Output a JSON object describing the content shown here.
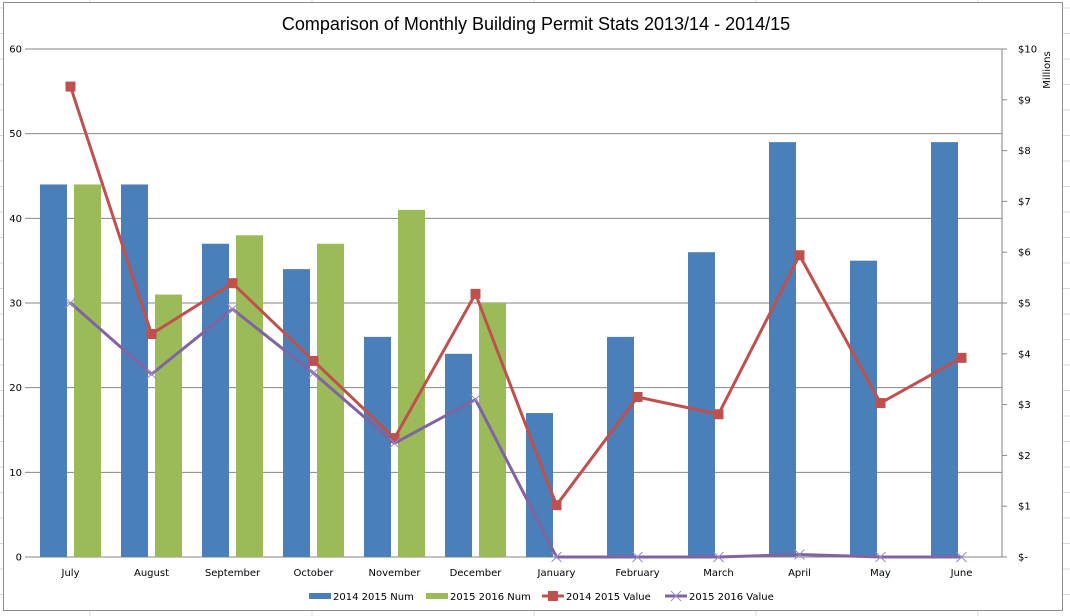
{
  "chart_data": {
    "type": "bar",
    "title": "Comparison of Monthly Building Permit Stats 2013/14 - 2014/15",
    "xlabel": "",
    "ylabel": "",
    "y2label": "Millions",
    "categories": [
      "July",
      "August",
      "September",
      "October",
      "November",
      "December",
      "January",
      "February",
      "March",
      "April",
      "May",
      "June"
    ],
    "ylim": [
      0,
      60
    ],
    "yticks": [
      "0",
      "10",
      "20",
      "30",
      "40",
      "50",
      "60"
    ],
    "y2lim": [
      0,
      10
    ],
    "y2ticks": [
      "$-",
      "$1",
      "$2",
      "$3",
      "$4",
      "$5",
      "$6",
      "$7",
      "$8",
      "$9",
      "$10"
    ],
    "grid": true,
    "legend_position": "bottom",
    "series": [
      {
        "name": "2014 2015 Num",
        "kind": "bar",
        "axis": "left",
        "color": "#4a7fba",
        "values": [
          44,
          44,
          37,
          34,
          26,
          24,
          17,
          26,
          36,
          49,
          35,
          49
        ]
      },
      {
        "name": "2015 2016 Num",
        "kind": "bar",
        "axis": "left",
        "color": "#9bbb59",
        "values": [
          44,
          31,
          38,
          37,
          41,
          30,
          null,
          null,
          null,
          null,
          null,
          null
        ]
      },
      {
        "name": "2014 2015 Value",
        "kind": "line",
        "axis": "right",
        "marker": "square",
        "color": "#c0504d",
        "values": [
          9.26,
          4.39,
          5.39,
          3.86,
          2.34,
          5.18,
          1.02,
          3.15,
          2.81,
          5.94,
          3.03,
          3.92
        ]
      },
      {
        "name": "2015 2016 Value",
        "kind": "line",
        "axis": "right",
        "marker": "x",
        "color": "#8064a2",
        "values": [
          5.0,
          3.6,
          4.88,
          3.62,
          2.24,
          3.1,
          0,
          0,
          0,
          0.05,
          0,
          0
        ]
      }
    ]
  }
}
